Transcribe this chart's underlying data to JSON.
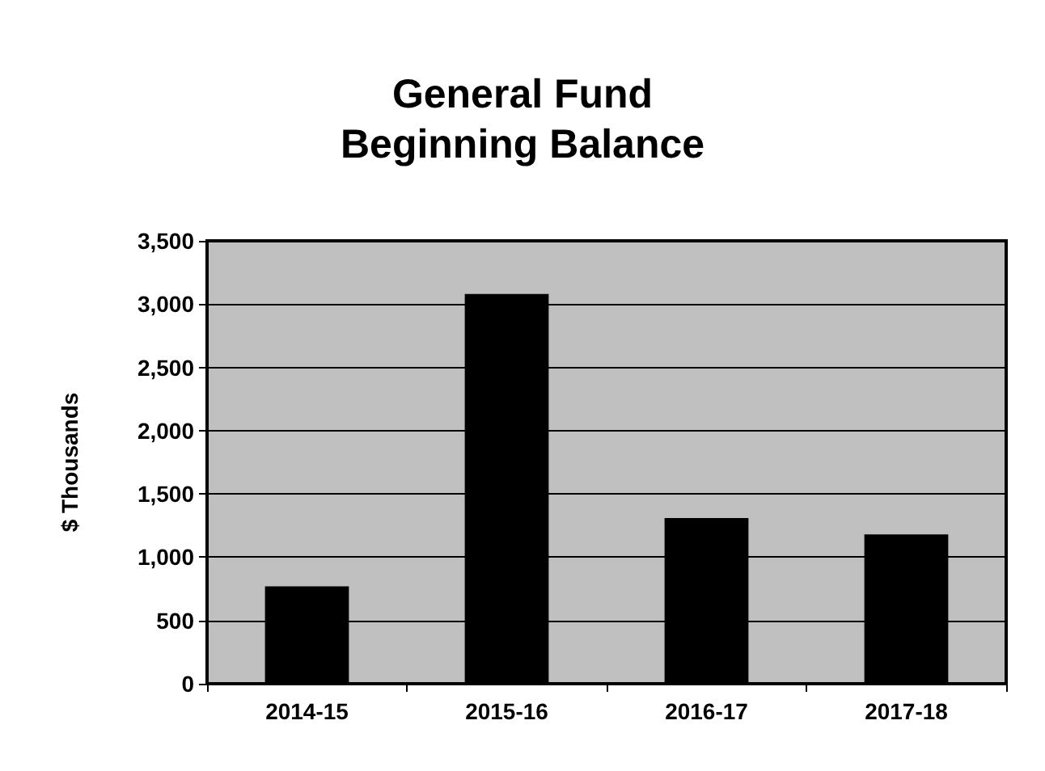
{
  "chart_data": {
    "type": "bar",
    "title": "General Fund\nBeginning Balance",
    "ylabel": "$ Thousands",
    "categories": [
      "2014-15",
      "2015-16",
      "2016-17",
      "2017-18"
    ],
    "values": [
      770,
      3080,
      1310,
      1180
    ],
    "color": "#000000",
    "ylim": [
      0,
      3500
    ],
    "yticks": [
      0,
      500,
      {
        "value": 1000,
        "label": "1,000"
      },
      {
        "value": 1500,
        "label": "1,500"
      },
      {
        "value": 2000,
        "label": "2,000"
      },
      {
        "value": 2500,
        "label": "2,500"
      },
      {
        "value": 3000,
        "label": "3,000"
      },
      {
        "value": 3500,
        "label": "3,500"
      }
    ],
    "grid": "y"
  }
}
